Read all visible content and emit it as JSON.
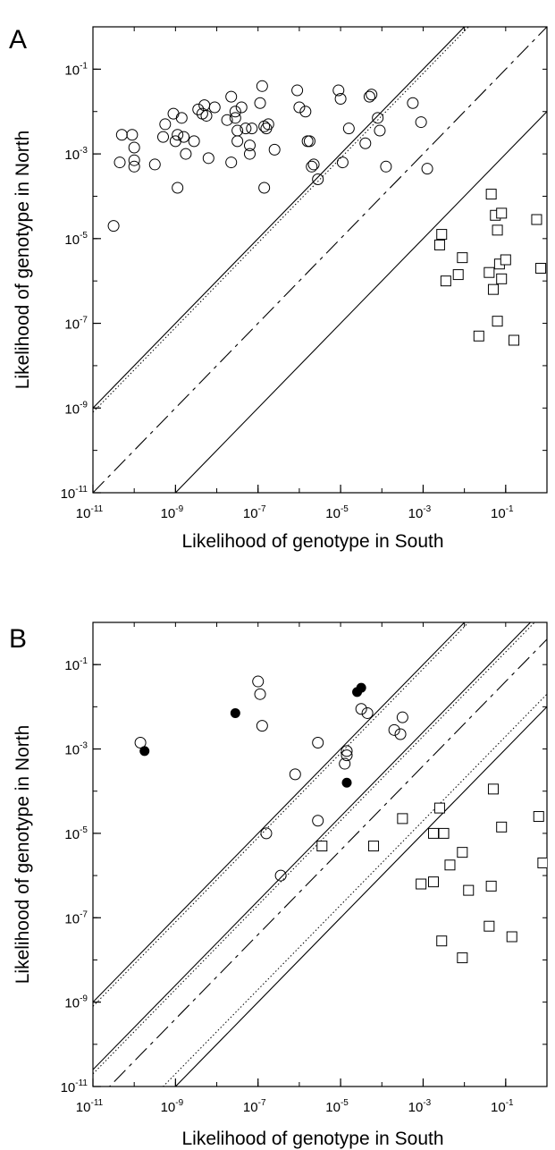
{
  "chart_data": [
    {
      "type": "scatter",
      "panel_label": "A",
      "xlabel": "Likelihood of genotype in South",
      "ylabel": "Likelihood of genotype in North",
      "x_scale": "log",
      "y_scale": "log",
      "xlim": [
        1e-11,
        1
      ],
      "ylim": [
        1e-11,
        1
      ],
      "x_ticks": [
        {
          "base": "10",
          "exp": "-11"
        },
        {
          "base": "10",
          "exp": "-9"
        },
        {
          "base": "10",
          "exp": "-7"
        },
        {
          "base": "10",
          "exp": "-5"
        },
        {
          "base": "10",
          "exp": "-3"
        },
        {
          "base": "10",
          "exp": "-1"
        }
      ],
      "y_ticks": [
        {
          "base": "10",
          "exp": "-1"
        },
        {
          "base": "10",
          "exp": "-3"
        },
        {
          "base": "10",
          "exp": "-5"
        },
        {
          "base": "10",
          "exp": "-7"
        },
        {
          "base": "10",
          "exp": "-9"
        },
        {
          "base": "10",
          "exp": "-11"
        }
      ],
      "reference_lines": [
        {
          "style": "solid",
          "offset": 2
        },
        {
          "style": "dotted",
          "offset": 1.9
        },
        {
          "style": "dashed",
          "offset": 0
        },
        {
          "style": "solid",
          "offset": -2
        }
      ],
      "series": [
        {
          "marker": "open-circle",
          "points": [
            [
              -10.5,
              -4.7
            ],
            [
              -10.35,
              -3.2
            ],
            [
              -10.3,
              -2.55
            ],
            [
              -10.05,
              -2.55
            ],
            [
              -10.0,
              -2.85
            ],
            [
              -10.0,
              -3.3
            ],
            [
              -10.0,
              -3.15
            ],
            [
              -9.5,
              -3.25
            ],
            [
              -9.3,
              -2.6
            ],
            [
              -9.25,
              -2.3
            ],
            [
              -9.05,
              -2.05
            ],
            [
              -9.0,
              -2.7
            ],
            [
              -8.95,
              -2.55
            ],
            [
              -8.95,
              -3.8
            ],
            [
              -8.85,
              -2.15
            ],
            [
              -8.8,
              -2.6
            ],
            [
              -8.75,
              -3.0
            ],
            [
              -8.55,
              -2.7
            ],
            [
              -8.45,
              -1.95
            ],
            [
              -8.35,
              -2.05
            ],
            [
              -8.3,
              -1.85
            ],
            [
              -8.25,
              -2.1
            ],
            [
              -8.2,
              -3.1
            ],
            [
              -8.05,
              -1.9
            ],
            [
              -7.75,
              -2.2
            ],
            [
              -7.65,
              -3.2
            ],
            [
              -7.65,
              -1.65
            ],
            [
              -7.55,
              -2.0
            ],
            [
              -7.55,
              -2.15
            ],
            [
              -7.5,
              -2.45
            ],
            [
              -7.5,
              -2.7
            ],
            [
              -7.4,
              -1.9
            ],
            [
              -7.3,
              -2.4
            ],
            [
              -7.2,
              -3.0
            ],
            [
              -7.2,
              -2.8
            ],
            [
              -7.15,
              -2.4
            ],
            [
              -6.9,
              -1.4
            ],
            [
              -6.95,
              -1.8
            ],
            [
              -6.85,
              -2.35
            ],
            [
              -6.85,
              -3.8
            ],
            [
              -6.8,
              -2.4
            ],
            [
              -6.75,
              -2.3
            ],
            [
              -6.6,
              -2.9
            ],
            [
              -6.05,
              -1.5
            ],
            [
              -6.0,
              -1.9
            ],
            [
              -5.85,
              -2.0
            ],
            [
              -5.8,
              -2.7
            ],
            [
              -5.75,
              -2.7
            ],
            [
              -5.7,
              -3.3
            ],
            [
              -5.65,
              -3.25
            ],
            [
              -5.55,
              -3.6
            ],
            [
              -5.05,
              -1.5
            ],
            [
              -5.0,
              -1.7
            ],
            [
              -4.95,
              -3.2
            ],
            [
              -4.8,
              -2.4
            ],
            [
              -4.4,
              -2.75
            ],
            [
              -4.3,
              -1.65
            ],
            [
              -4.25,
              -1.6
            ],
            [
              -4.1,
              -2.15
            ],
            [
              -4.05,
              -2.45
            ],
            [
              -3.9,
              -3.3
            ],
            [
              -3.25,
              -1.8
            ],
            [
              -3.05,
              -2.25
            ],
            [
              -2.9,
              -3.35
            ]
          ]
        },
        {
          "marker": "open-square",
          "points": [
            [
              -2.6,
              -5.15
            ],
            [
              -2.55,
              -4.9
            ],
            [
              -2.45,
              -6.0
            ],
            [
              -2.15,
              -5.85
            ],
            [
              -2.05,
              -5.45
            ],
            [
              -1.65,
              -7.3
            ],
            [
              -1.4,
              -5.8
            ],
            [
              -1.35,
              -3.95
            ],
            [
              -1.3,
              -6.2
            ],
            [
              -1.25,
              -4.45
            ],
            [
              -1.2,
              -6.95
            ],
            [
              -1.2,
              -4.8
            ],
            [
              -1.15,
              -5.6
            ],
            [
              -1.1,
              -4.4
            ],
            [
              -1.1,
              -5.95
            ],
            [
              -1.0,
              -5.5
            ],
            [
              -0.8,
              -7.4
            ],
            [
              -0.25,
              -4.55
            ],
            [
              -0.15,
              -5.7
            ]
          ]
        }
      ]
    },
    {
      "type": "scatter",
      "panel_label": "B",
      "xlabel": "Likelihood of genotype in South",
      "ylabel": "Likelihood of genotype in North",
      "x_scale": "log",
      "y_scale": "log",
      "xlim": [
        1e-11,
        1
      ],
      "ylim": [
        1e-11,
        1
      ],
      "x_ticks": [
        {
          "base": "10",
          "exp": "-11"
        },
        {
          "base": "10",
          "exp": "-9"
        },
        {
          "base": "10",
          "exp": "-7"
        },
        {
          "base": "10",
          "exp": "-5"
        },
        {
          "base": "10",
          "exp": "-3"
        },
        {
          "base": "10",
          "exp": "-1"
        }
      ],
      "y_ticks": [
        {
          "base": "10",
          "exp": "-1"
        },
        {
          "base": "10",
          "exp": "-3"
        },
        {
          "base": "10",
          "exp": "-5"
        },
        {
          "base": "10",
          "exp": "-7"
        },
        {
          "base": "10",
          "exp": "-9"
        },
        {
          "base": "10",
          "exp": "-11"
        }
      ],
      "reference_lines": [
        {
          "style": "solid",
          "offset": 2
        },
        {
          "style": "dotted",
          "offset": 1.9
        },
        {
          "style": "solid",
          "offset": 0.4
        },
        {
          "style": "dotted",
          "offset": 0.3
        },
        {
          "style": "dashed",
          "offset": -0.4
        },
        {
          "style": "dotted",
          "offset": -1.7
        },
        {
          "style": "solid",
          "offset": -2
        }
      ],
      "series": [
        {
          "marker": "open-circle",
          "points": [
            [
              -9.85,
              -2.85
            ],
            [
              -7.0,
              -1.4
            ],
            [
              -6.95,
              -1.7
            ],
            [
              -6.9,
              -2.45
            ],
            [
              -6.8,
              -5.0
            ],
            [
              -6.45,
              -6.0
            ],
            [
              -6.1,
              -3.6
            ],
            [
              -5.55,
              -4.7
            ],
            [
              -5.55,
              -2.85
            ],
            [
              -4.9,
              -3.35
            ],
            [
              -4.85,
              -3.15
            ],
            [
              -4.85,
              -3.05
            ],
            [
              -4.5,
              -2.05
            ],
            [
              -4.35,
              -2.15
            ],
            [
              -3.7,
              -2.55
            ],
            [
              -3.55,
              -2.65
            ],
            [
              -3.5,
              -2.25
            ]
          ]
        },
        {
          "marker": "filled-circle",
          "points": [
            [
              -9.75,
              -3.05
            ],
            [
              -7.55,
              -2.15
            ],
            [
              -4.85,
              -3.8
            ],
            [
              -4.6,
              -1.65
            ],
            [
              -4.5,
              -1.55
            ]
          ]
        },
        {
          "marker": "open-square",
          "points": [
            [
              -5.45,
              -5.3
            ],
            [
              -4.2,
              -5.3
            ],
            [
              -3.5,
              -4.65
            ],
            [
              -3.05,
              -6.2
            ],
            [
              -2.75,
              -6.15
            ],
            [
              -2.75,
              -5.0
            ],
            [
              -2.6,
              -4.4
            ],
            [
              -2.55,
              -7.55
            ],
            [
              -2.5,
              -5.0
            ],
            [
              -2.35,
              -5.75
            ],
            [
              -2.05,
              -7.95
            ],
            [
              -2.05,
              -5.45
            ],
            [
              -1.9,
              -6.35
            ],
            [
              -1.4,
              -7.2
            ],
            [
              -1.35,
              -6.25
            ],
            [
              -1.3,
              -3.95
            ],
            [
              -1.1,
              -4.85
            ],
            [
              -0.85,
              -7.45
            ],
            [
              -0.2,
              -4.6
            ],
            [
              -0.1,
              -5.7
            ]
          ]
        }
      ]
    }
  ]
}
